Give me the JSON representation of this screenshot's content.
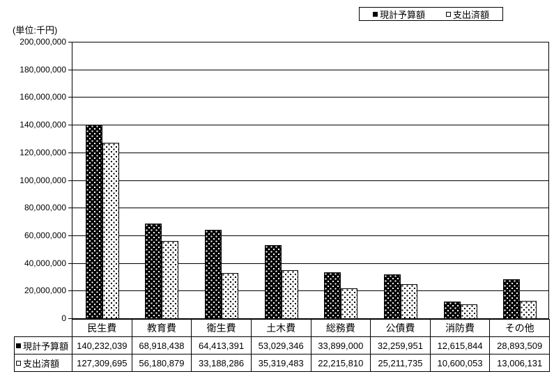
{
  "unit_label": "(単位:千円)",
  "legend": {
    "items": [
      {
        "label": "現計予算額",
        "marker": "filled-square"
      },
      {
        "label": "支出済額",
        "marker": "open-square"
      }
    ]
  },
  "colors": {
    "budget_bar_bg": "#000000",
    "budget_bar_dot": "#ffffff",
    "spent_bar_bg": "#ffffff",
    "spent_bar_dot": "#000000",
    "line": "#000000",
    "background": "#ffffff"
  },
  "chart_data": {
    "type": "bar",
    "title": "",
    "unit": "千円",
    "categories": [
      "民生費",
      "教育費",
      "衛生費",
      "土木費",
      "総務費",
      "公債費",
      "消防費",
      "その他"
    ],
    "series": [
      {
        "name": "現計予算額",
        "key": "budget",
        "values": [
          140232039,
          68918438,
          64413391,
          53029346,
          33899000,
          32259951,
          12615844,
          28893509
        ]
      },
      {
        "name": "支出済額",
        "key": "spent",
        "values": [
          127309695,
          56180879,
          33188286,
          35319483,
          22215810,
          25211735,
          10600053,
          13006131
        ]
      }
    ],
    "ylim": [
      0,
      200000000
    ],
    "ytick_step": 20000000,
    "ytick_labels": [
      "0",
      "20,000,000",
      "40,000,000",
      "60,000,000",
      "80,000,000",
      "100,000,000",
      "120,000,000",
      "140,000,000",
      "160,000,000",
      "180,000,000",
      "200,000,000"
    ],
    "ylabel": "(単位:千円)",
    "grid": true,
    "legend_position": "top-right"
  },
  "table": {
    "header": [
      "民生費",
      "教育費",
      "衛生費",
      "土木費",
      "総務費",
      "公債費",
      "消防費",
      "その他"
    ],
    "rows": [
      {
        "label": "現計予算額",
        "marker": "filled-square",
        "values": [
          "140,232,039",
          "68,918,438",
          "64,413,391",
          "53,029,346",
          "33,899,000",
          "32,259,951",
          "12,615,844",
          "28,893,509"
        ]
      },
      {
        "label": "支出済額",
        "marker": "open-square",
        "values": [
          "127,309,695",
          "56,180,879",
          "33,188,286",
          "35,319,483",
          "22,215,810",
          "25,211,735",
          "10,600,053",
          "13,006,131"
        ]
      }
    ]
  }
}
